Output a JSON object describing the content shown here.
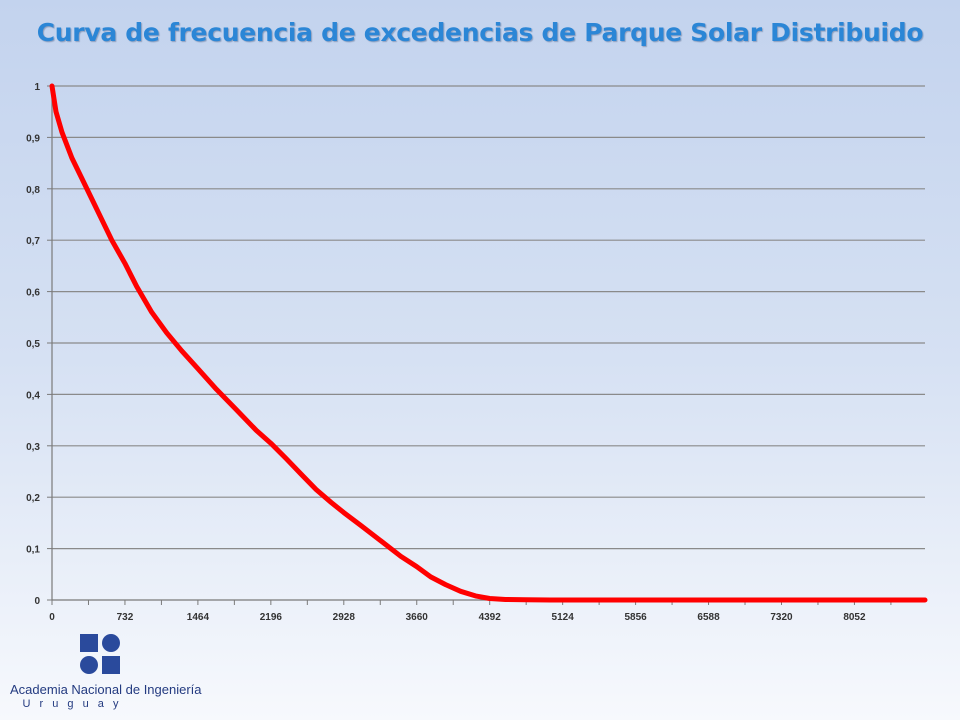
{
  "chart_data": {
    "type": "line",
    "title": "Curva de frecuencia de excedencias de Parque Solar Distribuido",
    "xlabel": "",
    "ylabel": "",
    "xlim": [
      0,
      8760
    ],
    "ylim": [
      0,
      1
    ],
    "x_ticks": [
      "0",
      "732",
      "1464",
      "2196",
      "2928",
      "3660",
      "4392",
      "5124",
      "5856",
      "6588",
      "7320",
      "8052"
    ],
    "x_tick_values": [
      0,
      732,
      1464,
      2196,
      2928,
      3660,
      4392,
      5124,
      5856,
      6588,
      7320,
      8052
    ],
    "y_ticks": [
      "0",
      "0,1",
      "0,2",
      "0,3",
      "0,4",
      "0,5",
      "0,6",
      "0,7",
      "0,8",
      "0,9",
      "1"
    ],
    "y_tick_values": [
      0,
      0.1,
      0.2,
      0.3,
      0.4,
      0.5,
      0.6,
      0.7,
      0.8,
      0.9,
      1
    ],
    "grid": "horizontal",
    "series": [
      {
        "color": "#ff0000",
        "x": [
          0,
          40,
          100,
          200,
          300,
          400,
          500,
          600,
          732,
          850,
          1000,
          1150,
          1300,
          1464,
          1650,
          1850,
          2050,
          2196,
          2350,
          2500,
          2650,
          2800,
          2928,
          3100,
          3300,
          3500,
          3660,
          3800,
          3950,
          4100,
          4250,
          4392,
          4550,
          4750,
          5000,
          5124,
          6000,
          7000,
          8052,
          8760
        ],
        "y": [
          1.0,
          0.95,
          0.91,
          0.86,
          0.82,
          0.78,
          0.74,
          0.7,
          0.655,
          0.61,
          0.56,
          0.52,
          0.485,
          0.45,
          0.41,
          0.37,
          0.33,
          0.305,
          0.275,
          0.245,
          0.215,
          0.19,
          0.17,
          0.145,
          0.115,
          0.085,
          0.065,
          0.045,
          0.03,
          0.017,
          0.008,
          0.003,
          0.001,
          0.0003,
          0.0,
          0.0,
          0.0,
          0.0,
          0.0,
          0.0
        ]
      }
    ]
  },
  "logo": {
    "name": "Academia Nacional de Ingeniería",
    "country": "U r u g u a y"
  }
}
